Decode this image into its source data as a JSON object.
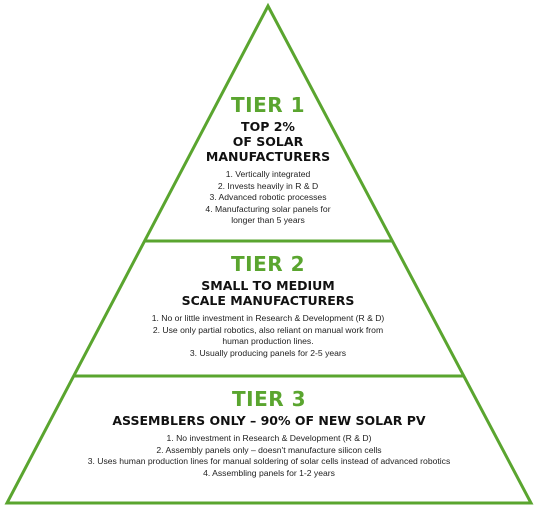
{
  "colors": {
    "accent": "#5aa52f",
    "heading": "#111111",
    "text": "#222222"
  },
  "tiers": [
    {
      "title": "TIER 1",
      "heading_lines": [
        "TOP 2%",
        "OF SOLAR",
        "MANUFACTURERS"
      ],
      "items": [
        "1. Vertically integrated",
        "2. Invests heavily in R & D",
        "3. Advanced robotic processes",
        "4. Manufacturing solar panels for",
        "longer than 5 years"
      ]
    },
    {
      "title": "TIER 2",
      "heading_lines": [
        "SMALL TO MEDIUM",
        "SCALE MANUFACTURERS"
      ],
      "items": [
        "1. No or little investment in Research & Development (R & D)",
        "2. Use only partial robotics, also reliant on manual work from",
        "human production lines.",
        "3. Usually producing panels for 2-5 years"
      ]
    },
    {
      "title": "TIER 3",
      "heading_lines": [
        "ASSEMBLERS ONLY – 90% OF NEW SOLAR PV"
      ],
      "items": [
        "1. No investment in Research & Development (R & D)",
        "2. Assembly panels only – doesn't manufacture silicon cells",
        "3. Uses human production lines for manual soldering of solar cells instead of advanced robotics",
        "4. Assembling panels for 1-2 years"
      ]
    }
  ]
}
